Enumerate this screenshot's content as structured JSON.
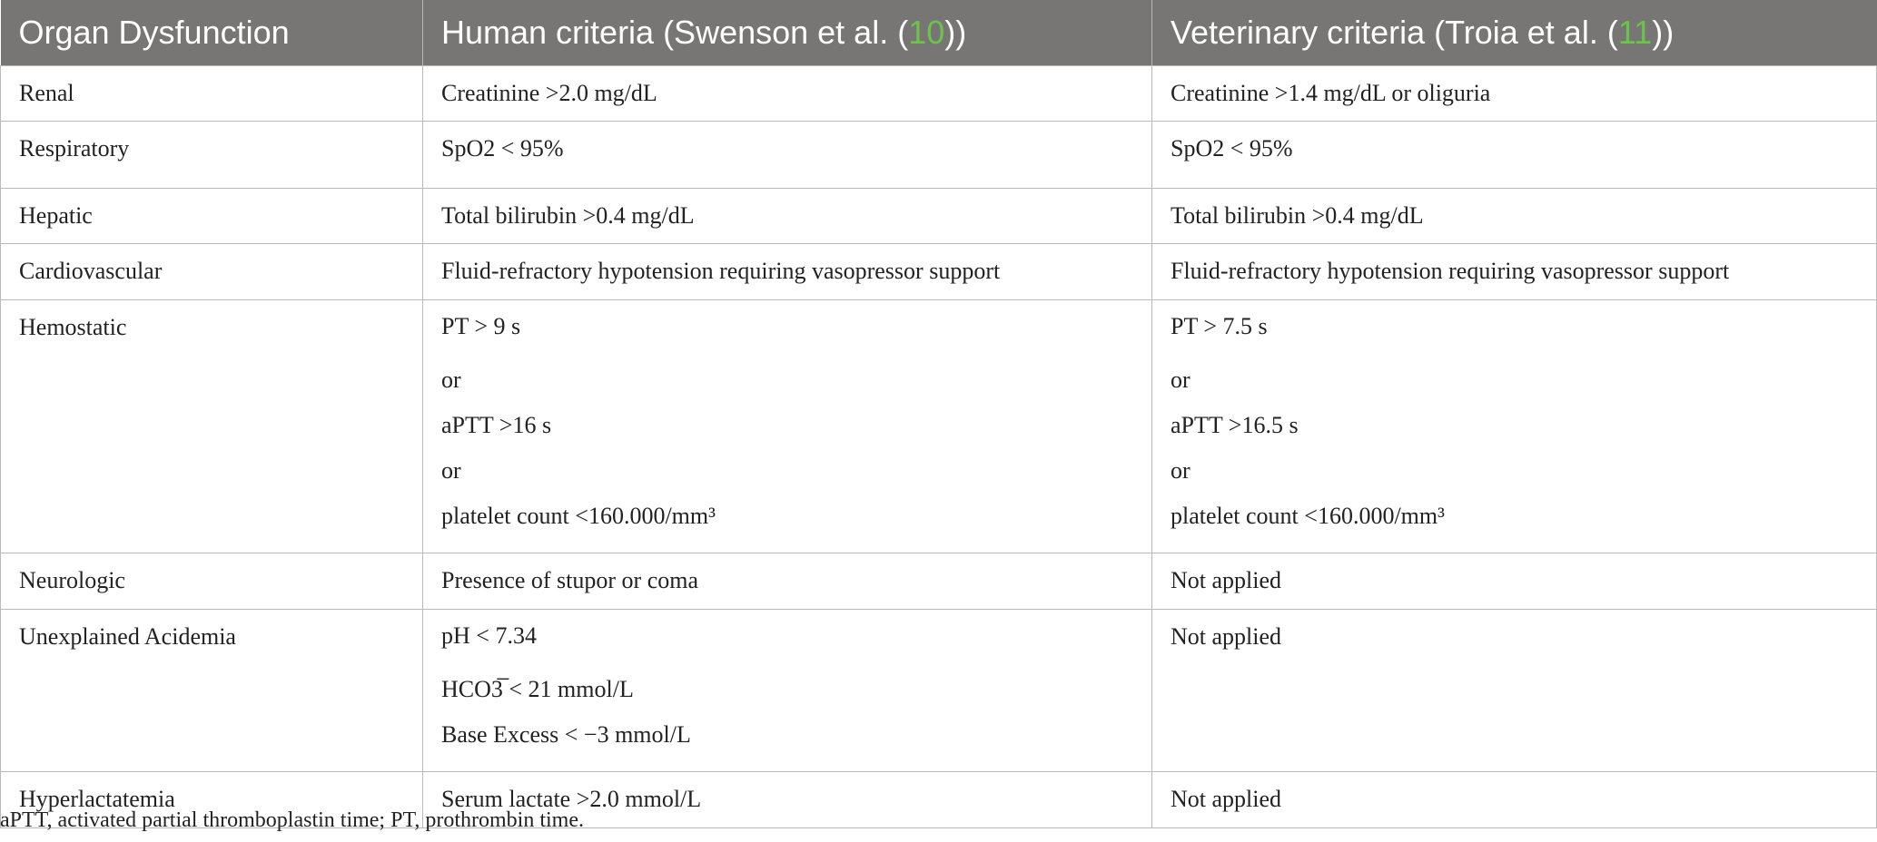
{
  "header": {
    "col1": "Organ Dysfunction",
    "col2_prefix": "Human criteria (Swenson et al. (",
    "col2_ref": "10",
    "col2_suffix": "))",
    "col3_prefix": "Veterinary criteria (Troia et al. (",
    "col3_ref": "11",
    "col3_suffix": "))",
    "header_bg": "#777674",
    "ref_color": "#6cc24a"
  },
  "rows": [
    {
      "organ": "Renal",
      "human": [
        "Creatinine >2.0 mg/dL"
      ],
      "veterinary": [
        "Creatinine >1.4 mg/dL or oliguria"
      ]
    },
    {
      "organ": "Respiratory",
      "human": [
        "SpO2 < 95%"
      ],
      "veterinary": [
        "SpO2 < 95%"
      ]
    },
    {
      "organ": "Hepatic",
      "human": [
        "Total bilirubin >0.4 mg/dL"
      ],
      "veterinary": [
        "Total bilirubin >0.4 mg/dL"
      ]
    },
    {
      "organ": "Cardiovascular",
      "human": [
        "Fluid-refractory hypotension requiring vasopressor support"
      ],
      "veterinary": [
        "Fluid-refractory hypotension requiring vasopressor support"
      ]
    },
    {
      "organ": "Hemostatic",
      "human": [
        "PT > 9 s",
        "or",
        "aPTT >16 s",
        "or",
        "platelet count <160.000/mm³"
      ],
      "veterinary": [
        "PT > 7.5 s",
        "or",
        "aPTT >16.5 s",
        "or",
        "platelet count <160.000/mm³"
      ]
    },
    {
      "organ": "Neurologic",
      "human": [
        "Presence of stupor or coma"
      ],
      "veterinary": [
        "Not applied"
      ]
    },
    {
      "organ": "Unexplained Acidemia",
      "human": [
        "pH < 7.34",
        "HCO3̅ < 21 mmol/L",
        "Base Excess < −3 mmol/L"
      ],
      "veterinary": [
        "Not applied"
      ]
    },
    {
      "organ": "Hyperlactatemia",
      "human": [
        "Serum lactate >2.0 mmol/L"
      ],
      "veterinary": [
        "Not applied"
      ]
    }
  ],
  "footnote": "aPTT, activated partial thromboplastin time; PT, prothrombin time."
}
